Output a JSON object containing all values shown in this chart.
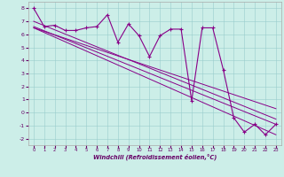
{
  "xlabel": "Windchill (Refroidissement éolien,°C)",
  "bg_color": "#cceee8",
  "line_color": "#880088",
  "ylim": [
    -2.5,
    8.5
  ],
  "xlim": [
    -0.5,
    23.5
  ],
  "yticks": [
    -2,
    -1,
    0,
    1,
    2,
    3,
    4,
    5,
    6,
    7,
    8
  ],
  "xticks": [
    0,
    1,
    2,
    3,
    4,
    5,
    6,
    7,
    8,
    9,
    10,
    11,
    12,
    13,
    14,
    15,
    16,
    17,
    18,
    19,
    20,
    21,
    22,
    23
  ],
  "data_x": [
    0,
    1,
    2,
    3,
    4,
    5,
    6,
    7,
    8,
    9,
    10,
    11,
    12,
    13,
    14,
    15,
    16,
    17,
    18,
    19,
    20,
    21,
    22,
    23
  ],
  "data_y": [
    8.0,
    6.6,
    6.7,
    6.3,
    6.3,
    6.5,
    6.6,
    7.5,
    5.4,
    6.8,
    5.9,
    4.3,
    5.9,
    6.4,
    6.4,
    0.9,
    6.5,
    6.5,
    3.3,
    -0.4,
    -1.5,
    -0.9,
    -1.7,
    -0.9
  ],
  "trend1_x": [
    0,
    23
  ],
  "trend1_y": [
    7.0,
    -0.5
  ],
  "trend2_x": [
    0,
    23
  ],
  "trend2_y": [
    6.6,
    -0.9
  ],
  "trend3_x": [
    0,
    23
  ],
  "trend3_y": [
    6.5,
    0.3
  ],
  "trend4_x": [
    0,
    23
  ],
  "trend4_y": [
    6.5,
    -1.7
  ]
}
